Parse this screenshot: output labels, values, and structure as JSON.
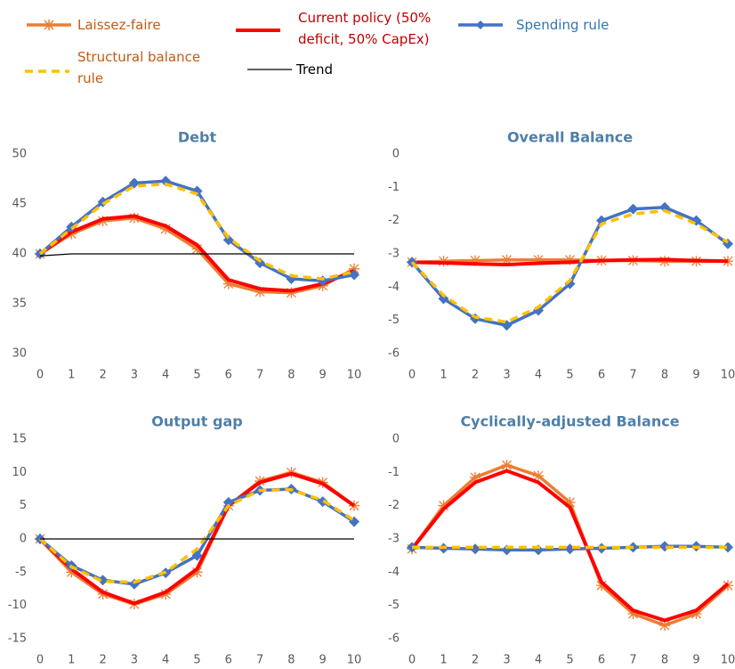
{
  "chart_data": [
    {
      "type": "line",
      "title": "Debt",
      "x": [
        0,
        1,
        2,
        3,
        4,
        5,
        6,
        7,
        8,
        9,
        10
      ],
      "xlim": [
        0,
        10
      ],
      "xticks": [
        0,
        1,
        2,
        3,
        4,
        5,
        6,
        7,
        8,
        9,
        10
      ],
      "ylim": [
        30,
        50
      ],
      "yticks": [
        30,
        35,
        40,
        45,
        50
      ],
      "series": [
        {
          "name": "Laissez-faire",
          "color": "#ed7d31",
          "marker": "star",
          "values": [
            40,
            42,
            43.3,
            43.6,
            42.5,
            40.5,
            37,
            36.2,
            36.1,
            36.8,
            38.5
          ]
        },
        {
          "name": "Current policy (50% deficit, 50% CapEx)",
          "color": "#ff0000",
          "values": [
            40,
            42.2,
            43.5,
            43.8,
            42.8,
            40.9,
            37.4,
            36.5,
            36.3,
            37,
            38.3
          ]
        },
        {
          "name": "Spending rule",
          "color": "#4472c4",
          "marker": "diamond",
          "values": [
            40,
            42.7,
            45.2,
            47.1,
            47.3,
            46.3,
            41.4,
            39.1,
            37.5,
            37.3,
            37.9
          ]
        },
        {
          "name": "Structural balance rule",
          "color": "#ffc000",
          "dashed": true,
          "values": [
            40,
            42.5,
            45,
            46.8,
            47,
            46,
            41.6,
            39.3,
            37.8,
            37.5,
            38.2
          ]
        },
        {
          "name": "Trend",
          "color": "#000000",
          "thin": true,
          "values": [
            39.8,
            40,
            40,
            40,
            40,
            40,
            40,
            40,
            40,
            40,
            40
          ]
        }
      ]
    },
    {
      "type": "line",
      "title": "Overall Balance",
      "x": [
        0,
        1,
        2,
        3,
        4,
        5,
        6,
        7,
        8,
        9,
        10
      ],
      "xlim": [
        0,
        10
      ],
      "xticks": [
        0,
        1,
        2,
        3,
        4,
        5,
        6,
        7,
        8,
        9,
        10
      ],
      "ylim": [
        -6,
        0
      ],
      "yticks": [
        -6,
        -5,
        -4,
        -3,
        -2,
        -1,
        0
      ],
      "series": [
        {
          "name": "Laissez-faire",
          "color": "#ed7d31",
          "marker": "star",
          "values": [
            -3.25,
            -3.22,
            -3.2,
            -3.18,
            -3.18,
            -3.18,
            -3.2,
            -3.2,
            -3.22,
            -3.22,
            -3.22
          ]
        },
        {
          "name": "Current policy (50% deficit, 50% CapEx)",
          "color": "#ff0000",
          "values": [
            -3.25,
            -3.27,
            -3.3,
            -3.32,
            -3.28,
            -3.25,
            -3.2,
            -3.18,
            -3.17,
            -3.2,
            -3.22
          ]
        },
        {
          "name": "Spending rule",
          "color": "#4472c4",
          "marker": "diamond",
          "values": [
            -3.25,
            -4.35,
            -4.95,
            -5.15,
            -4.7,
            -3.9,
            -2,
            -1.65,
            -1.6,
            -2,
            -2.7
          ]
        },
        {
          "name": "Structural balance rule",
          "color": "#ffc000",
          "dashed": true,
          "values": [
            -3.25,
            -4.25,
            -4.9,
            -5.05,
            -4.6,
            -3.8,
            -2.1,
            -1.8,
            -1.7,
            -2.1,
            -2.65
          ]
        }
      ]
    },
    {
      "type": "line",
      "title": "Output gap",
      "x": [
        0,
        1,
        2,
        3,
        4,
        5,
        6,
        7,
        8,
        9,
        10
      ],
      "xlim": [
        0,
        10
      ],
      "xticks": [
        0,
        1,
        2,
        3,
        4,
        5,
        6,
        7,
        8,
        9,
        10
      ],
      "ylim": [
        -15,
        15
      ],
      "yticks": [
        -15,
        -10,
        -5,
        0,
        5,
        10,
        15
      ],
      "series": [
        {
          "name": "Laissez-faire",
          "color": "#ed7d31",
          "marker": "star",
          "values": [
            0,
            -5,
            -8.3,
            -9.8,
            -8.3,
            -5,
            5,
            8.7,
            10,
            8.5,
            5
          ]
        },
        {
          "name": "Current policy (50% deficit, 50% CapEx)",
          "color": "#ff0000",
          "values": [
            0,
            -4.5,
            -8,
            -9.7,
            -8,
            -4.5,
            5,
            8.5,
            9.8,
            8.3,
            5
          ]
        },
        {
          "name": "Spending rule",
          "color": "#4472c4",
          "marker": "diamond",
          "values": [
            0,
            -4,
            -6.2,
            -6.8,
            -5.1,
            -2.5,
            5.5,
            7.3,
            7.5,
            5.6,
            2.6
          ]
        },
        {
          "name": "Structural balance rule",
          "color": "#ffc000",
          "dashed": true,
          "values": [
            0,
            -4.2,
            -6.4,
            -6.5,
            -5,
            -1.5,
            5,
            7.3,
            7.4,
            5.8,
            2.8
          ]
        },
        {
          "name": "Trend",
          "color": "#000000",
          "thin": true,
          "values": [
            0,
            0,
            0,
            0,
            0,
            0,
            0,
            0,
            0,
            0,
            0
          ]
        }
      ]
    },
    {
      "type": "line",
      "title": "Cyclically-adjusted Balance",
      "x": [
        0,
        1,
        2,
        3,
        4,
        5,
        6,
        7,
        8,
        9,
        10
      ],
      "xlim": [
        0,
        10
      ],
      "xticks": [
        0,
        1,
        2,
        3,
        4,
        5,
        6,
        7,
        8,
        9,
        10
      ],
      "ylim": [
        -6,
        0
      ],
      "yticks": [
        -6,
        -5,
        -4,
        -3,
        -2,
        -1,
        0
      ],
      "series": [
        {
          "name": "Laissez-faire",
          "color": "#ed7d31",
          "marker": "star",
          "values": [
            -3.3,
            -2,
            -1.15,
            -0.78,
            -1.1,
            -1.9,
            -4.4,
            -5.25,
            -5.6,
            -5.25,
            -4.4
          ]
        },
        {
          "name": "Current policy (50% deficit, 50% CapEx)",
          "color": "#ff0000",
          "values": [
            -3.3,
            -2.1,
            -1.3,
            -0.95,
            -1.3,
            -2.05,
            -4.3,
            -5.15,
            -5.45,
            -5.15,
            -4.35
          ]
        },
        {
          "name": "Spending rule",
          "color": "#4472c4",
          "marker": "diamond",
          "values": [
            -3.25,
            -3.28,
            -3.3,
            -3.33,
            -3.33,
            -3.3,
            -3.28,
            -3.25,
            -3.22,
            -3.22,
            -3.25
          ]
        },
        {
          "name": "Structural balance rule",
          "color": "#ffc000",
          "dashed": true,
          "values": [
            -3.25,
            -3.25,
            -3.25,
            -3.25,
            -3.25,
            -3.25,
            -3.25,
            -3.25,
            -3.25,
            -3.25,
            -3.25
          ]
        }
      ]
    }
  ]
}
